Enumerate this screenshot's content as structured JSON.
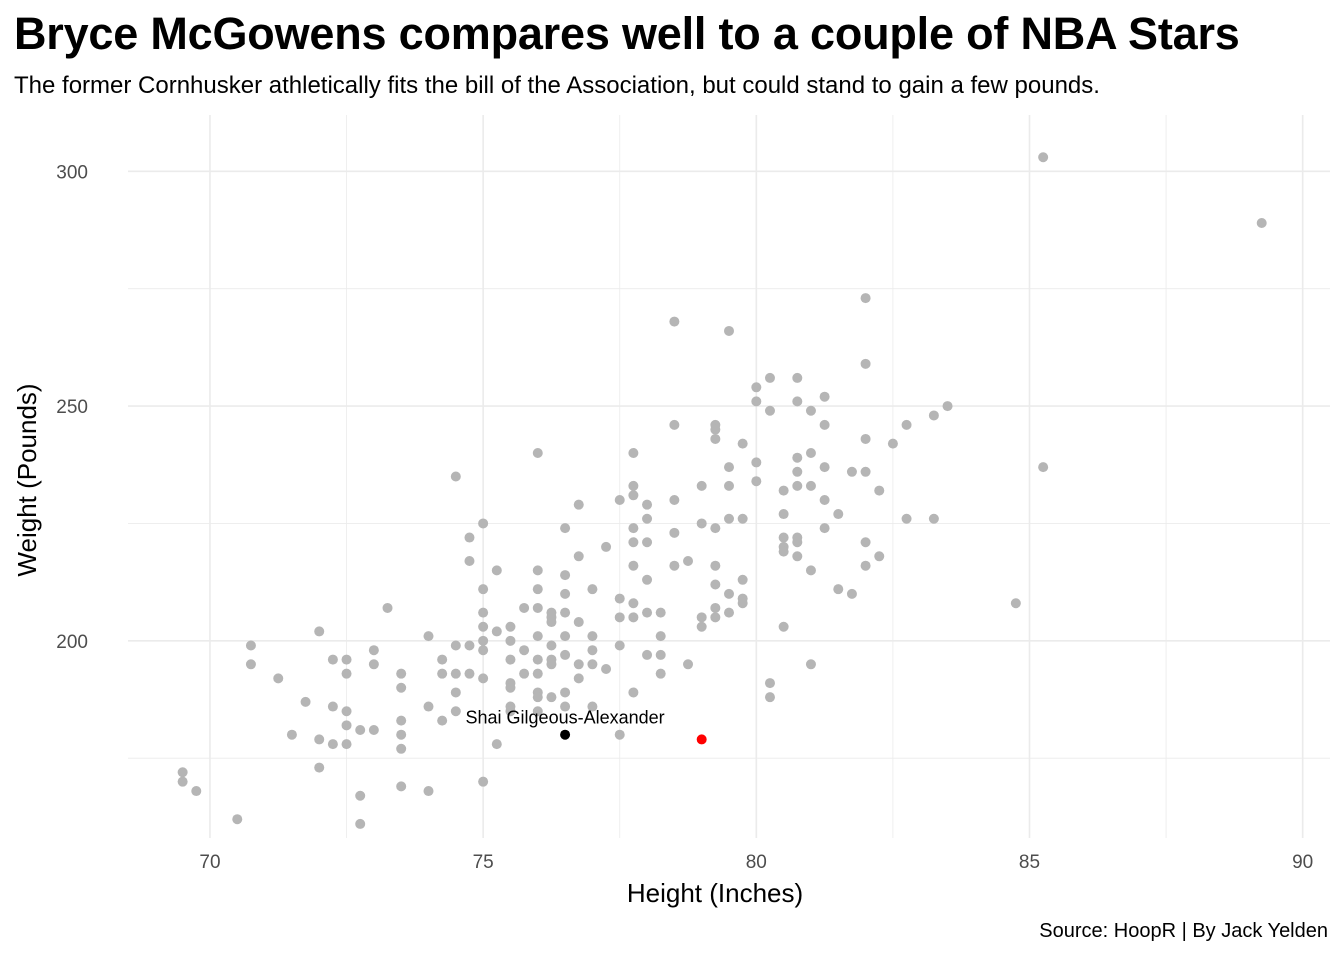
{
  "title": "Bryce McGowens compares well to a couple of NBA Stars",
  "subtitle": "The former Cornhusker athletically fits the bill of the Association, but could stand to gain a few pounds.",
  "caption": "Source: HoopR | By Jack Yelden",
  "chart_data": {
    "type": "scatter",
    "xlabel": "Height (Inches)",
    "ylabel": "Weight (Pounds)",
    "xlim": [
      68.5,
      90.5
    ],
    "ylim": [
      158,
      312
    ],
    "x_ticks": [
      70,
      75,
      80,
      85,
      90
    ],
    "y_ticks": [
      200,
      250,
      300
    ],
    "grid": true,
    "colors": {
      "points": "#b5b5b5",
      "highlight": "#000000",
      "featured": "#ff0000",
      "grid": "#ebebeb"
    },
    "highlight_point": {
      "label": "Shai Gilgeous-Alexander",
      "x": 76.5,
      "y": 180
    },
    "featured_point": {
      "x": 79,
      "y": 179
    },
    "points": [
      [
        69.5,
        172
      ],
      [
        69.5,
        170
      ],
      [
        69.75,
        168
      ],
      [
        70.5,
        162
      ],
      [
        70.75,
        199
      ],
      [
        70.75,
        195
      ],
      [
        71.25,
        192
      ],
      [
        71.5,
        180
      ],
      [
        71.75,
        187
      ],
      [
        72,
        202
      ],
      [
        72,
        179
      ],
      [
        72,
        173
      ],
      [
        72.25,
        196
      ],
      [
        72.25,
        186
      ],
      [
        72.25,
        178
      ],
      [
        72.5,
        196
      ],
      [
        72.5,
        193
      ],
      [
        72.5,
        185
      ],
      [
        72.5,
        182
      ],
      [
        72.5,
        178
      ],
      [
        72.75,
        181
      ],
      [
        72.75,
        167
      ],
      [
        72.75,
        161
      ],
      [
        73,
        198
      ],
      [
        73,
        195
      ],
      [
        73,
        181
      ],
      [
        73.25,
        207
      ],
      [
        73.5,
        193
      ],
      [
        73.5,
        190
      ],
      [
        73.5,
        183
      ],
      [
        73.5,
        180
      ],
      [
        73.5,
        177
      ],
      [
        73.5,
        169
      ],
      [
        74,
        201
      ],
      [
        74,
        186
      ],
      [
        74,
        168
      ],
      [
        74.25,
        196
      ],
      [
        74.25,
        193
      ],
      [
        74.25,
        183
      ],
      [
        74.5,
        235
      ],
      [
        74.5,
        199
      ],
      [
        74.5,
        193
      ],
      [
        74.5,
        189
      ],
      [
        74.5,
        185
      ],
      [
        74.75,
        222
      ],
      [
        74.75,
        217
      ],
      [
        74.75,
        199
      ],
      [
        74.75,
        193
      ],
      [
        75,
        225
      ],
      [
        75,
        211
      ],
      [
        75,
        206
      ],
      [
        75,
        203
      ],
      [
        75,
        200
      ],
      [
        75,
        198
      ],
      [
        75,
        192
      ],
      [
        75,
        170
      ],
      [
        75.25,
        215
      ],
      [
        75.25,
        202
      ],
      [
        75.25,
        178
      ],
      [
        75.5,
        203
      ],
      [
        75.5,
        200
      ],
      [
        75.5,
        196
      ],
      [
        75.5,
        191
      ],
      [
        75.5,
        190
      ],
      [
        75.5,
        186
      ],
      [
        75.5,
        185
      ],
      [
        75.75,
        207
      ],
      [
        75.75,
        198
      ],
      [
        75.75,
        193
      ],
      [
        76,
        240
      ],
      [
        76,
        215
      ],
      [
        76,
        211
      ],
      [
        76,
        207
      ],
      [
        76,
        201
      ],
      [
        76,
        196
      ],
      [
        76,
        193
      ],
      [
        76,
        189
      ],
      [
        76,
        188
      ],
      [
        76,
        185
      ],
      [
        76.25,
        206
      ],
      [
        76.25,
        205
      ],
      [
        76.25,
        204
      ],
      [
        76.25,
        199
      ],
      [
        76.25,
        196
      ],
      [
        76.25,
        195
      ],
      [
        76.25,
        188
      ],
      [
        76.5,
        224
      ],
      [
        76.5,
        214
      ],
      [
        76.5,
        210
      ],
      [
        76.5,
        206
      ],
      [
        76.5,
        201
      ],
      [
        76.5,
        197
      ],
      [
        76.5,
        189
      ],
      [
        76.5,
        186
      ],
      [
        76.75,
        229
      ],
      [
        76.75,
        218
      ],
      [
        76.75,
        204
      ],
      [
        76.75,
        195
      ],
      [
        76.75,
        192
      ],
      [
        77,
        211
      ],
      [
        77,
        201
      ],
      [
        77,
        198
      ],
      [
        77,
        195
      ],
      [
        77,
        186
      ],
      [
        77.25,
        220
      ],
      [
        77.25,
        194
      ],
      [
        77.5,
        230
      ],
      [
        77.5,
        209
      ],
      [
        77.5,
        205
      ],
      [
        77.5,
        199
      ],
      [
        77.5,
        180
      ],
      [
        77.75,
        240
      ],
      [
        77.75,
        233
      ],
      [
        77.75,
        231
      ],
      [
        77.75,
        224
      ],
      [
        77.75,
        221
      ],
      [
        77.75,
        216
      ],
      [
        77.75,
        208
      ],
      [
        77.75,
        205
      ],
      [
        77.75,
        189
      ],
      [
        78,
        229
      ],
      [
        78,
        226
      ],
      [
        78,
        221
      ],
      [
        78,
        213
      ],
      [
        78,
        206
      ],
      [
        78,
        197
      ],
      [
        78.25,
        206
      ],
      [
        78.25,
        201
      ],
      [
        78.25,
        197
      ],
      [
        78.25,
        193
      ],
      [
        78.5,
        268
      ],
      [
        78.5,
        246
      ],
      [
        78.5,
        230
      ],
      [
        78.5,
        223
      ],
      [
        78.5,
        216
      ],
      [
        78.75,
        217
      ],
      [
        78.75,
        195
      ],
      [
        79,
        233
      ],
      [
        79,
        225
      ],
      [
        79,
        205
      ],
      [
        79,
        203
      ],
      [
        79.25,
        246
      ],
      [
        79.25,
        245
      ],
      [
        79.25,
        243
      ],
      [
        79.25,
        224
      ],
      [
        79.25,
        216
      ],
      [
        79.25,
        212
      ],
      [
        79.25,
        207
      ],
      [
        79.25,
        205
      ],
      [
        79.5,
        266
      ],
      [
        79.5,
        237
      ],
      [
        79.5,
        233
      ],
      [
        79.5,
        226
      ],
      [
        79.5,
        210
      ],
      [
        79.5,
        206
      ],
      [
        79.75,
        242
      ],
      [
        79.75,
        226
      ],
      [
        79.75,
        213
      ],
      [
        79.75,
        209
      ],
      [
        79.75,
        208
      ],
      [
        80,
        254
      ],
      [
        80,
        251
      ],
      [
        80,
        238
      ],
      [
        80,
        234
      ],
      [
        80.25,
        256
      ],
      [
        80.25,
        249
      ],
      [
        80.25,
        191
      ],
      [
        80.25,
        188
      ],
      [
        80.5,
        232
      ],
      [
        80.5,
        227
      ],
      [
        80.5,
        222
      ],
      [
        80.5,
        220
      ],
      [
        80.5,
        219
      ],
      [
        80.5,
        203
      ],
      [
        80.75,
        256
      ],
      [
        80.75,
        251
      ],
      [
        80.75,
        239
      ],
      [
        80.75,
        236
      ],
      [
        80.75,
        233
      ],
      [
        80.75,
        222
      ],
      [
        80.75,
        221
      ],
      [
        80.75,
        218
      ],
      [
        81,
        249
      ],
      [
        81,
        240
      ],
      [
        81,
        233
      ],
      [
        81,
        215
      ],
      [
        81,
        195
      ],
      [
        81.25,
        252
      ],
      [
        81.25,
        246
      ],
      [
        81.25,
        237
      ],
      [
        81.25,
        230
      ],
      [
        81.25,
        224
      ],
      [
        81.5,
        227
      ],
      [
        81.5,
        211
      ],
      [
        81.75,
        236
      ],
      [
        81.75,
        210
      ],
      [
        82,
        273
      ],
      [
        82,
        259
      ],
      [
        82,
        243
      ],
      [
        82,
        236
      ],
      [
        82,
        221
      ],
      [
        82,
        216
      ],
      [
        82.25,
        232
      ],
      [
        82.25,
        218
      ],
      [
        82.5,
        242
      ],
      [
        82.75,
        246
      ],
      [
        82.75,
        226
      ],
      [
        83.25,
        248
      ],
      [
        83.25,
        226
      ],
      [
        83.5,
        250
      ],
      [
        84.75,
        208
      ],
      [
        85.25,
        303
      ],
      [
        85.25,
        237
      ],
      [
        89.25,
        289
      ]
    ]
  }
}
